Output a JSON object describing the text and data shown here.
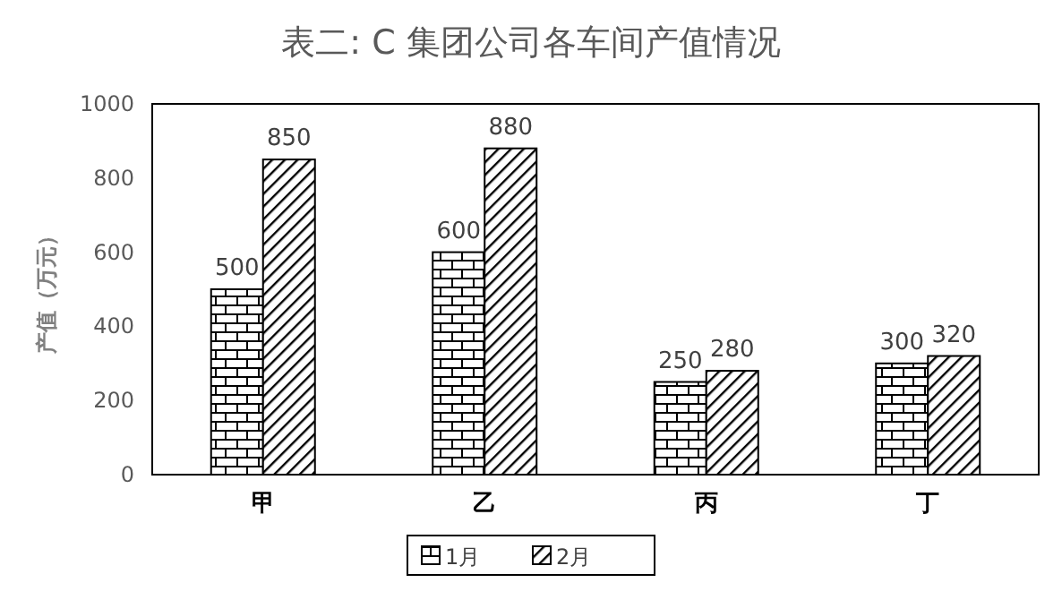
{
  "chart_data": {
    "type": "bar",
    "title": "表二: C 集团公司各车间产值情况",
    "ylabel": "产值（万元）",
    "categories": [
      "甲",
      "乙",
      "丙",
      "丁"
    ],
    "series": [
      {
        "name": "1月",
        "color": "#000000",
        "values": [
          500,
          600,
          250,
          300
        ]
      },
      {
        "name": "2月",
        "color": "#000000",
        "values": [
          850,
          880,
          280,
          320
        ]
      }
    ],
    "ylim": [
      0,
      1000
    ],
    "yticks": [
      0,
      200,
      400,
      600,
      800,
      1000
    ],
    "grid": false,
    "legend": "bottom",
    "data_labels": true
  }
}
